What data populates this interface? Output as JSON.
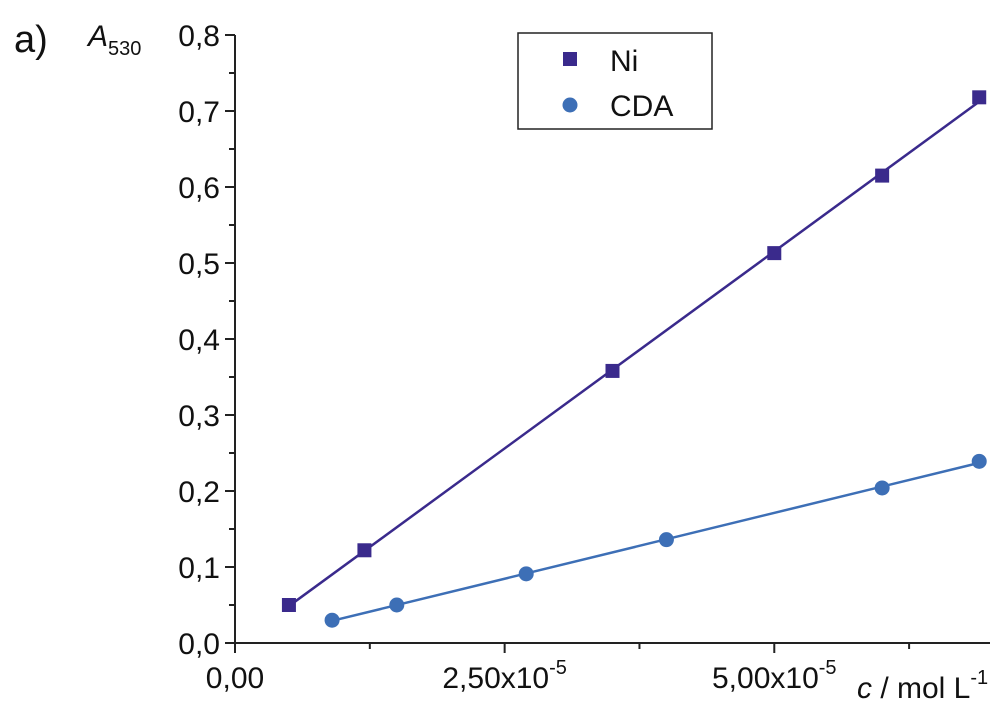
{
  "panel_label": "a)",
  "chart_data": {
    "type": "scatter",
    "title": "",
    "ylabel": {
      "symbol": "A",
      "subscript": "530"
    },
    "xlabel": {
      "symbol": "c",
      "rest": " / mol L",
      "superscript": "-1"
    },
    "xlim": [
      0,
      7e-05
    ],
    "ylim": [
      0,
      0.8
    ],
    "x_ticks": [
      {
        "value": 0,
        "label": "0,00",
        "exp": ""
      },
      {
        "value": 2.5e-05,
        "label": "2,50x10",
        "exp": "-5"
      },
      {
        "value": 5e-05,
        "label": "5,00x10",
        "exp": "-5"
      }
    ],
    "y_ticks": [
      {
        "value": 0.0,
        "label": "0,0"
      },
      {
        "value": 0.1,
        "label": "0,1"
      },
      {
        "value": 0.2,
        "label": "0,2"
      },
      {
        "value": 0.3,
        "label": "0,3"
      },
      {
        "value": 0.4,
        "label": "0,4"
      },
      {
        "value": 0.5,
        "label": "0,5"
      },
      {
        "value": 0.6,
        "label": "0,6"
      },
      {
        "value": 0.7,
        "label": "0,7"
      },
      {
        "value": 0.8,
        "label": "0,8"
      }
    ],
    "grid": false,
    "legend_position": "top-right",
    "series": [
      {
        "name": "Ni",
        "marker": "square",
        "color": "#3a2a8c",
        "fit": "linear",
        "x": [
          5e-06,
          1.2e-05,
          3.5e-05,
          5e-05,
          6e-05,
          6.9e-05
        ],
        "y": [
          0.05,
          0.122,
          0.358,
          0.513,
          0.615,
          0.718
        ]
      },
      {
        "name": "CDA",
        "marker": "circle",
        "color": "#3d6fb6",
        "fit": "linear",
        "x": [
          9e-06,
          1.5e-05,
          2.7e-05,
          4e-05,
          6e-05,
          6.9e-05
        ],
        "y": [
          0.03,
          0.05,
          0.091,
          0.136,
          0.204,
          0.239
        ]
      }
    ]
  }
}
